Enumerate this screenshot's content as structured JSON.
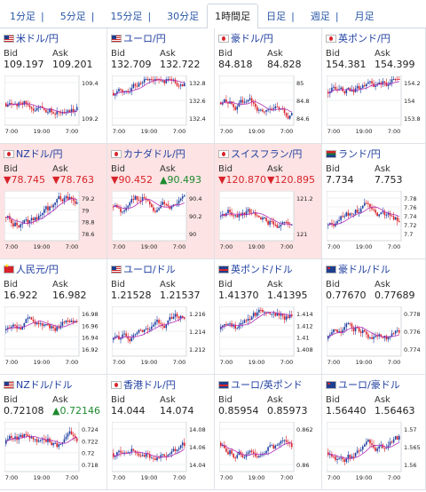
{
  "tabs": [
    {
      "label": "1分足",
      "active": false
    },
    {
      "label": "5分足",
      "active": false
    },
    {
      "label": "15分足",
      "active": false
    },
    {
      "label": "30分足",
      "active": false
    },
    {
      "label": "1時間足",
      "active": true
    },
    {
      "label": "日足",
      "active": false
    },
    {
      "label": "週足",
      "active": false
    },
    {
      "label": "月足",
      "active": false
    }
  ],
  "colors": {
    "up_candle": "#1f3fa0",
    "down_candle": "#d8232a",
    "ma_line": "#b42fb8",
    "grid": "#d4d8de"
  },
  "cards": [
    {
      "title": "米ドル/円",
      "flag": "usa",
      "bid": "109.197",
      "ask": "109.201",
      "dir": "",
      "alert": false,
      "yticks": [
        "109.4",
        "109.2"
      ],
      "xticks": [
        "7:00",
        "19:00",
        "7:00"
      ]
    },
    {
      "title": "ユーロ/円",
      "flag": "usa",
      "bid": "132.709",
      "ask": "132.722",
      "dir": "",
      "alert": false,
      "yticks": [
        "132.8",
        "132.6",
        "132.4"
      ],
      "xticks": [
        "7:00",
        "19:00",
        "7:00"
      ]
    },
    {
      "title": "豪ドル/円",
      "flag": "jp",
      "bid": "84.818",
      "ask": "84.828",
      "dir": "",
      "alert": false,
      "yticks": [
        "85",
        "84.8",
        "84.6"
      ],
      "xticks": [
        "7:00",
        "19:00",
        "7:00"
      ]
    },
    {
      "title": "英ポンド/円",
      "flag": "jp",
      "bid": "154.381",
      "ask": "154.399",
      "dir": "",
      "alert": false,
      "yticks": [
        "154.2",
        "154",
        "153.8"
      ],
      "xticks": [
        "7:00",
        "19:00",
        "7:00"
      ]
    },
    {
      "title": "NZドル/円",
      "flag": "jp",
      "bid": "▼78.745",
      "ask": "▼78.763",
      "dir": "down",
      "alert": true,
      "yticks": [
        "79.2",
        "79",
        "78.8",
        "78.6"
      ],
      "xticks": [
        "7:00",
        "19:00",
        "7:00"
      ]
    },
    {
      "title": "カナダドル/円",
      "flag": "red",
      "bid": "▼90.452",
      "ask": "▲90.493",
      "dir": "mixed",
      "alert": true,
      "yticks": [
        "90.4",
        "90.2",
        "90"
      ],
      "xticks": [
        "7:00",
        "19:00",
        "7:00"
      ]
    },
    {
      "title": "スイスフラン/円",
      "flag": "red",
      "bid": "▼120.870",
      "ask": "▼120.895",
      "dir": "down",
      "alert": true,
      "yticks": [
        "121.2",
        "121"
      ],
      "xticks": [
        "7:00",
        "19:00",
        "7:00"
      ]
    },
    {
      "title": "ランド/円",
      "flag": "za",
      "bid": "7.734",
      "ask": "7.753",
      "dir": "",
      "alert": false,
      "yticks": [
        "7.78",
        "7.76",
        "7.74",
        "7.72",
        "7.7"
      ],
      "xticks": [
        "7:00",
        "19:00",
        "7:00"
      ]
    },
    {
      "title": "人民元/円",
      "flag": "cn",
      "bid": "16.922",
      "ask": "16.982",
      "dir": "",
      "alert": false,
      "yticks": [
        "16.98",
        "16.96",
        "16.94",
        "16.92"
      ],
      "xticks": [
        "7:00",
        "19:00",
        "7:00"
      ]
    },
    {
      "title": "ユーロ/ドル",
      "flag": "usa",
      "bid": "1.21528",
      "ask": "1.21537",
      "dir": "",
      "alert": false,
      "yticks": [
        "1.216",
        "1.214",
        "1.212"
      ],
      "xticks": [
        "7:00",
        "19:00",
        "7:00"
      ]
    },
    {
      "title": "英ポンド/ドル",
      "flag": "gb",
      "bid": "1.41370",
      "ask": "1.41395",
      "dir": "",
      "alert": false,
      "yticks": [
        "1.414",
        "1.412",
        "1.41",
        "1.408"
      ],
      "xticks": [
        "7:00",
        "19:00",
        "7:00"
      ]
    },
    {
      "title": "豪ドル/ドル",
      "flag": "au",
      "bid": "0.77670",
      "ask": "0.77689",
      "dir": "",
      "alert": false,
      "yticks": [
        "0.778",
        "0.776",
        "0.774"
      ],
      "xticks": [
        "7:00",
        "19:00",
        "7:00"
      ]
    },
    {
      "title": "NZドル/ドル",
      "flag": "usa",
      "bid": "0.72108",
      "ask": "▲0.72146",
      "dir": "ask-up",
      "alert": false,
      "yticks": [
        "0.724",
        "0.722",
        "0.72",
        "0.718"
      ],
      "xticks": [
        "7:00",
        "19:00",
        "7:00"
      ]
    },
    {
      "title": "香港ドル/円",
      "flag": "red",
      "bid": "14.044",
      "ask": "14.074",
      "dir": "",
      "alert": false,
      "yticks": [
        "14.08",
        "14.06",
        "14.04"
      ],
      "xticks": [
        "7:00",
        "19:00",
        "7:00"
      ]
    },
    {
      "title": "ユーロ/英ポンド",
      "flag": "gb",
      "bid": "0.85954",
      "ask": "0.85973",
      "dir": "",
      "alert": false,
      "yticks": [
        "0.862",
        "0.86"
      ],
      "xticks": [
        "7:00",
        "19:00",
        "7:00"
      ]
    },
    {
      "title": "ユーロ/豪ドル",
      "flag": "au",
      "bid": "1.56440",
      "ask": "1.56463",
      "dir": "",
      "alert": false,
      "yticks": [
        "1.57",
        "1.565",
        "1.56"
      ],
      "xticks": [
        "7:00",
        "19:00",
        "7:00"
      ]
    }
  ],
  "labels": {
    "bid": "Bid",
    "ask": "Ask"
  }
}
